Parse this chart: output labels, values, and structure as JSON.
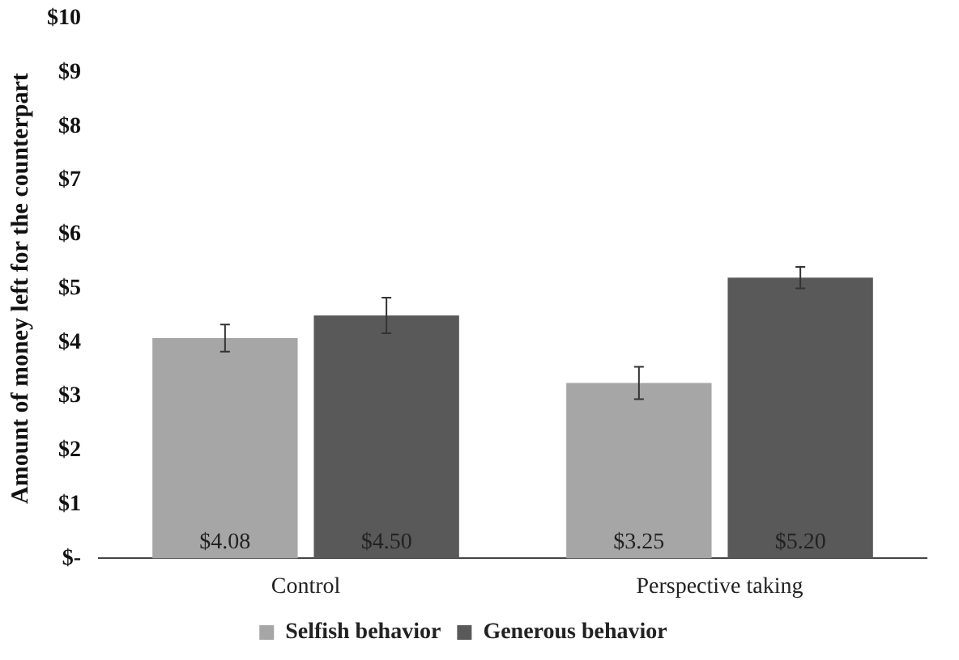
{
  "chart_data": {
    "type": "bar",
    "ylabel": "Amount of money left for the counterpart",
    "categories": [
      "Control",
      "Perspective taking"
    ],
    "series": [
      {
        "name": "Selfish behavior",
        "color": "#a6a6a6",
        "values": [
          4.08,
          3.25
        ],
        "errors": [
          0.25,
          0.3
        ],
        "value_labels": [
          "$4.08",
          "$3.25"
        ]
      },
      {
        "name": "Generous behavior",
        "color": "#595959",
        "values": [
          4.5,
          5.2
        ],
        "errors": [
          0.33,
          0.2
        ],
        "value_labels": [
          "$4.50",
          "$5.20"
        ]
      }
    ],
    "ylim": [
      0,
      10
    ],
    "yticks": [
      {
        "value": 0,
        "label": "$-"
      },
      {
        "value": 1,
        "label": "$1"
      },
      {
        "value": 2,
        "label": "$2"
      },
      {
        "value": 3,
        "label": "$3"
      },
      {
        "value": 4,
        "label": "$4"
      },
      {
        "value": 5,
        "label": "$5"
      },
      {
        "value": 6,
        "label": "$6"
      },
      {
        "value": 7,
        "label": "$7"
      },
      {
        "value": 8,
        "label": "$8"
      },
      {
        "value": 9,
        "label": "$9"
      },
      {
        "value": 10,
        "label": "$10"
      }
    ],
    "grid": false,
    "legend": "bottom"
  }
}
